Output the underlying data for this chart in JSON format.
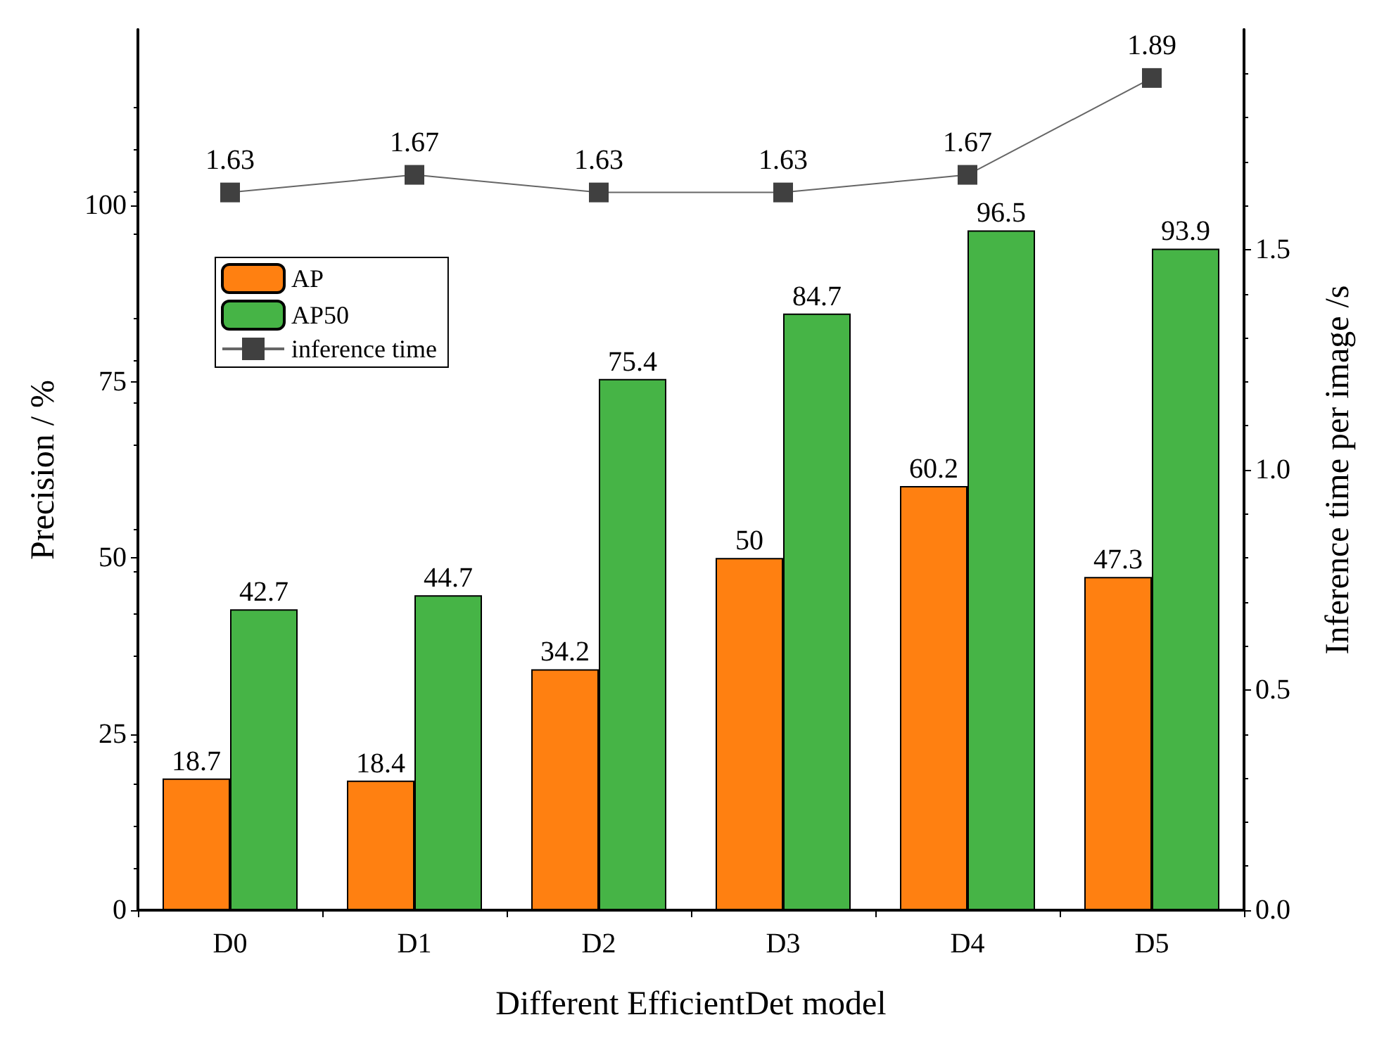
{
  "chart_data": {
    "type": "bar",
    "xlabel": "Different EfficientDet model",
    "ylabel": "Precision / %",
    "y2label": "Inference time per image /s",
    "categories": [
      "D0",
      "D1",
      "D2",
      "D3",
      "D4",
      "D5"
    ],
    "series": [
      {
        "name": "AP",
        "color": "#ff8011",
        "values": [
          18.7,
          18.4,
          34.2,
          50,
          60.2,
          47.3
        ]
      },
      {
        "name": "AP50",
        "color": "#46b446",
        "values": [
          42.7,
          44.7,
          75.4,
          84.7,
          96.5,
          93.9
        ]
      },
      {
        "name": "inference time",
        "type": "line",
        "axis": "y2",
        "color": "#404040",
        "marker": "square",
        "values": [
          1.63,
          1.67,
          1.63,
          1.63,
          1.67,
          1.89
        ]
      }
    ],
    "ylim": [
      0,
      125
    ],
    "yticks": [
      0,
      25,
      50,
      75,
      100
    ],
    "y2lim": [
      0,
      2
    ],
    "y2ticks": [
      {
        "value": 0,
        "label": "0.0"
      },
      0.5,
      {
        "value": 1,
        "label": "1.0"
      },
      1.5
    ],
    "data_labels": true,
    "legend": "top left",
    "grid": false
  }
}
